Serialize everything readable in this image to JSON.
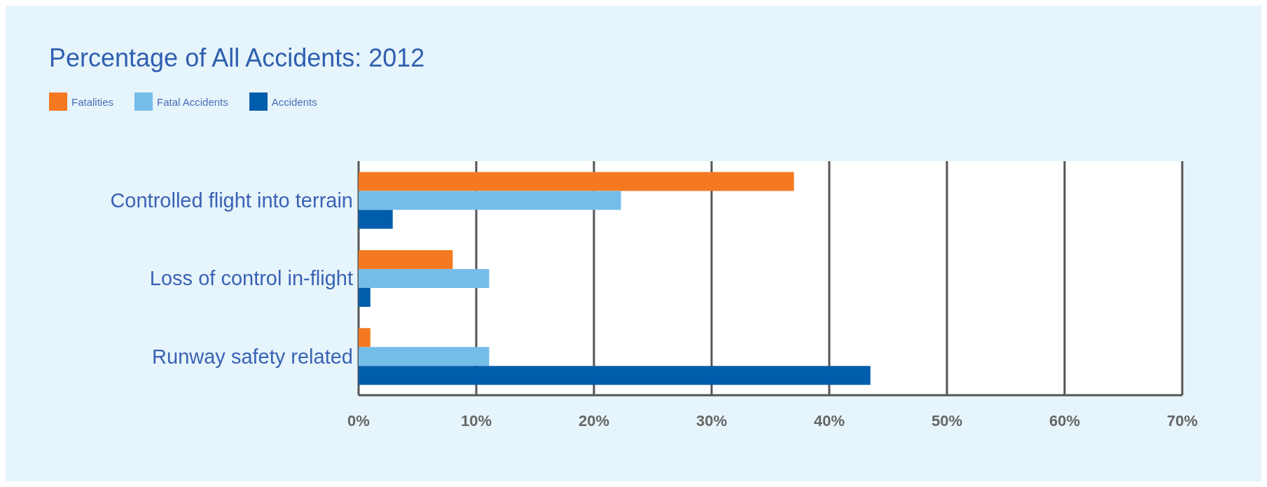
{
  "chart_data": {
    "type": "bar",
    "orientation": "horizontal",
    "title": "Percentage of All Accidents: 2012",
    "categories": [
      "Controlled flight into terrain",
      "Loss of control in-flight",
      "Runway safety related"
    ],
    "series": [
      {
        "name": "Fatalities",
        "color": "#f47920",
        "values": [
          37.0,
          8.0,
          1.0
        ]
      },
      {
        "name": "Fatal Accidents",
        "color": "#75bde9",
        "values": [
          22.3,
          11.1,
          11.1
        ]
      },
      {
        "name": "Accidents",
        "color": "#005dab",
        "values": [
          2.9,
          1.0,
          43.5
        ]
      }
    ],
    "xlim": [
      0,
      70
    ],
    "xticks": [
      {
        "value": 0,
        "label": "0%"
      },
      {
        "value": 10,
        "label": "10%"
      },
      {
        "value": 20,
        "label": "20%"
      },
      {
        "value": 30,
        "label": "30%"
      },
      {
        "value": 40,
        "label": "40%"
      },
      {
        "value": 50,
        "label": "50%"
      },
      {
        "value": 60,
        "label": "60%"
      },
      {
        "value": 70,
        "label": "70%"
      }
    ],
    "grid": "x",
    "legend": "top left"
  }
}
